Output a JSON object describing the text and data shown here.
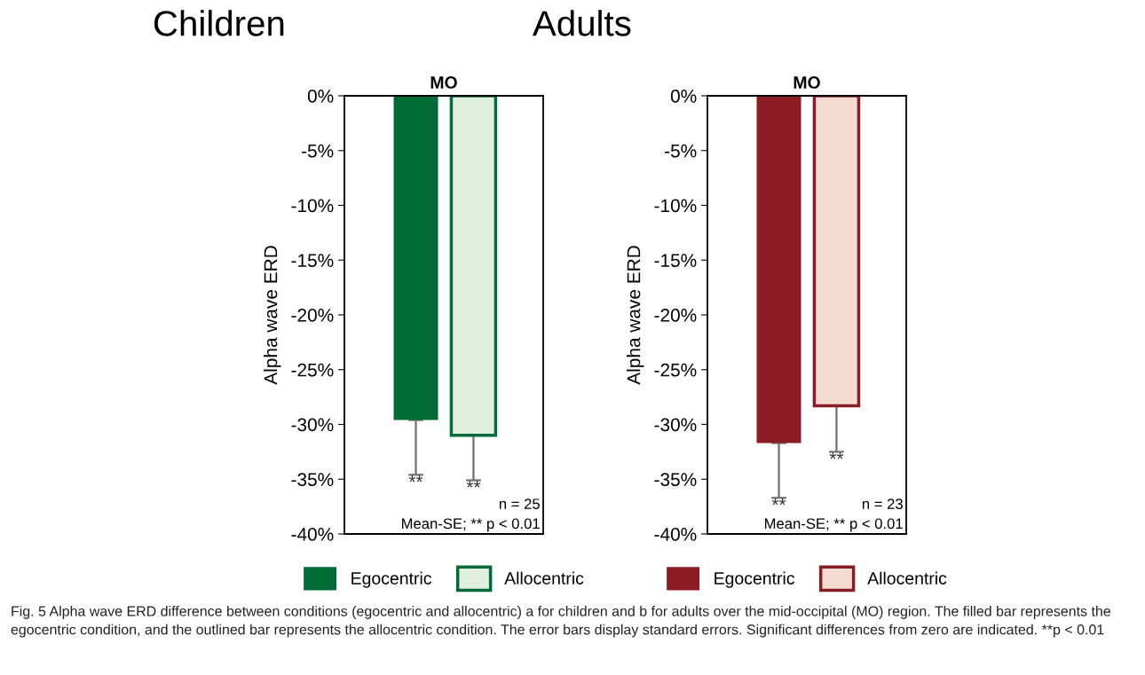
{
  "chart_data": [
    {
      "type": "bar",
      "title": "Children",
      "subtitle": "MO",
      "ylabel": "Alpha wave ERD",
      "categories": [
        null
      ],
      "legend": "bottom",
      "grid": false,
      "tick_labels": "y",
      "ylim": [
        -40,
        0
      ],
      "yticks": [
        {
          "value": 0,
          "label": "0%"
        },
        {
          "value": -5,
          "label": "-5%"
        },
        {
          "value": -10,
          "label": "-10%"
        },
        {
          "value": -15,
          "label": "-15%"
        },
        {
          "value": -20,
          "label": "-20%"
        },
        {
          "value": -25,
          "label": "-25%"
        },
        {
          "value": -30,
          "label": "-30%"
        },
        {
          "value": -35,
          "label": "-35%"
        },
        {
          "value": -40,
          "label": "-40%"
        }
      ],
      "series": [
        {
          "name": "Egocentric",
          "color": "#006b35",
          "values": [
            -29.6
          ],
          "errors": [
            [
              -34.6,
              -29.6
            ]
          ],
          "value_labels": [
            "**"
          ]
        },
        {
          "name": "Allocentric",
          "color": "#e0efe0",
          "values": [
            -31.0
          ],
          "errors": [
            [
              -35.1,
              -31.0
            ]
          ],
          "value_labels": [
            "**"
          ]
        }
      ],
      "annotations": [
        "n = 25",
        "Mean-SE; ** p < 0.01"
      ]
    },
    {
      "type": "bar",
      "title": "Adults",
      "subtitle": "MO",
      "ylabel": "Alpha wave ERD",
      "categories": [
        null
      ],
      "legend": "bottom",
      "grid": false,
      "tick_labels": "y",
      "ylim": [
        -40,
        0
      ],
      "yticks": [
        {
          "value": 0,
          "label": "0%"
        },
        {
          "value": -5,
          "label": "-5%"
        },
        {
          "value": -10,
          "label": "-10%"
        },
        {
          "value": -15,
          "label": "-15%"
        },
        {
          "value": -20,
          "label": "-20%"
        },
        {
          "value": -25,
          "label": "-25%"
        },
        {
          "value": -30,
          "label": "-30%"
        },
        {
          "value": -35,
          "label": "-35%"
        },
        {
          "value": -40,
          "label": "-40%"
        }
      ],
      "series": [
        {
          "name": "Egocentric",
          "color": "#8b1c24",
          "values": [
            -31.7
          ],
          "errors": [
            [
              -36.7,
              -31.7
            ]
          ],
          "value_labels": [
            "**"
          ]
        },
        {
          "name": "Allocentric",
          "color": "#f5dcd2",
          "values": [
            -28.3
          ],
          "errors": [
            [
              -32.5,
              -28.3
            ]
          ],
          "value_labels": [
            "**"
          ]
        }
      ],
      "annotations": [
        "n = 23",
        "Mean-SE; ** p < 0.01",
        "Fig. 5 Alpha wave ERD difference between conditions (egocentric and allocentric) a for children and b for adults over the mid-occipital (MO) region. The filled bar represents the egocentric condition, and the outlined bar represents the allocentric condition. The error bars display standard errors. Significant differences from zero are indicated. **p < 0.01"
      ]
    }
  ]
}
